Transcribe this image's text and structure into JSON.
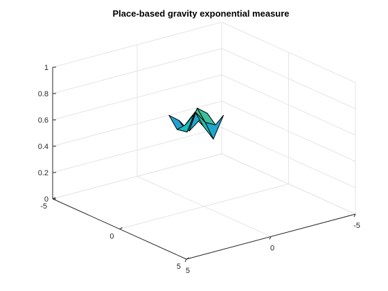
{
  "figure": {
    "title": "Place-based gravity exponential measure"
  },
  "chart_data": {
    "type": "surface3d",
    "title": "Place-based gravity exponential measure",
    "xlabel": "",
    "ylabel": "",
    "zlabel": "",
    "xlim": [
      -5,
      5
    ],
    "ylim": [
      -5,
      5
    ],
    "zlim": [
      0,
      1
    ],
    "x_ticks": [
      -5,
      0,
      5
    ],
    "y_ticks": [
      -5,
      0,
      5
    ],
    "z_ticks": [
      0,
      0.2,
      0.4,
      0.6,
      0.8,
      1
    ],
    "z_tick_labels": [
      "0",
      "0.2",
      "0.4",
      "0.6",
      "0.8",
      "1"
    ],
    "x_tick_labels": [
      "-5",
      "0",
      "5"
    ],
    "y_tick_labels": [
      "-5",
      "0",
      "5"
    ],
    "grid": true,
    "colormap": "parula",
    "surface": {
      "x": [
        -0.2,
        0.4,
        1.0,
        1.6
      ],
      "y": [
        -0.6,
        0.0,
        0.6,
        1.2
      ],
      "z": [
        [
          0.62,
          0.7,
          0.64,
          0.74
        ],
        [
          0.56,
          0.76,
          0.68,
          0.58
        ],
        [
          0.66,
          0.6,
          0.78,
          0.7
        ],
        [
          0.72,
          0.64,
          0.7,
          0.8
        ]
      ]
    }
  }
}
